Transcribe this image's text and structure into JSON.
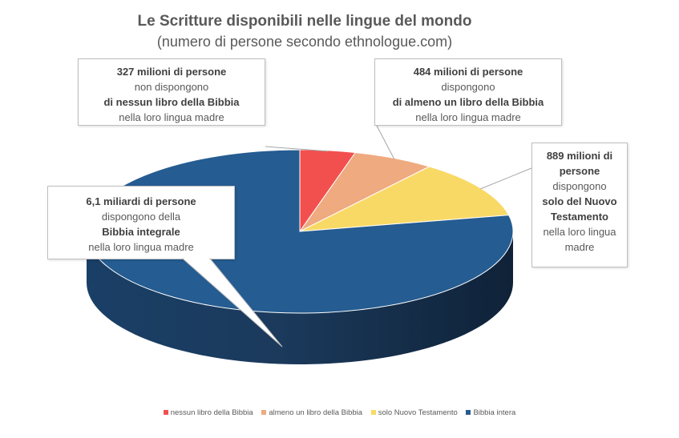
{
  "chart_data": {
    "type": "pie",
    "title": "Le Scritture disponibili nelle lingue del mondo",
    "subtitle": "(numero di persone secondo ethnologue.com)",
    "unit": "persone",
    "slices": [
      {
        "name": "nessun libro della Bibbia",
        "value": 327000000,
        "color": "#F2504E"
      },
      {
        "name": "almeno un libro della Bibbia",
        "value": 484000000,
        "color": "#EFAA80"
      },
      {
        "name": "solo Nuovo Testamento",
        "value": 889000000,
        "color": "#F9D966"
      },
      {
        "name": "Bibbia intera",
        "value": 6100000000,
        "color": "#255C91"
      }
    ],
    "legend_position": "bottom"
  },
  "callouts": {
    "nessun": {
      "line1": "327 milioni di persone",
      "line2": "non dispongono",
      "line3": "di nessun libro della Bibbia",
      "line4": "nella loro lingua madre"
    },
    "almeno": {
      "line1": "484 milioni di persone",
      "line2": "dispongono",
      "line3": "di almeno un libro della Bibbia",
      "line4": "nella loro lingua madre"
    },
    "nt": {
      "line1a": "889 milioni di",
      "line1b": "persone",
      "line2": "dispongono",
      "line3a": "solo del Nuovo",
      "line3b": "Testamento",
      "line4a": "nella loro lingua",
      "line4b": "madre"
    },
    "intera": {
      "line1": "6,1 miliardi di persone",
      "line2": "dispongono della",
      "line3": "Bibbia integrale",
      "line4": "nella loro lingua madre"
    }
  }
}
